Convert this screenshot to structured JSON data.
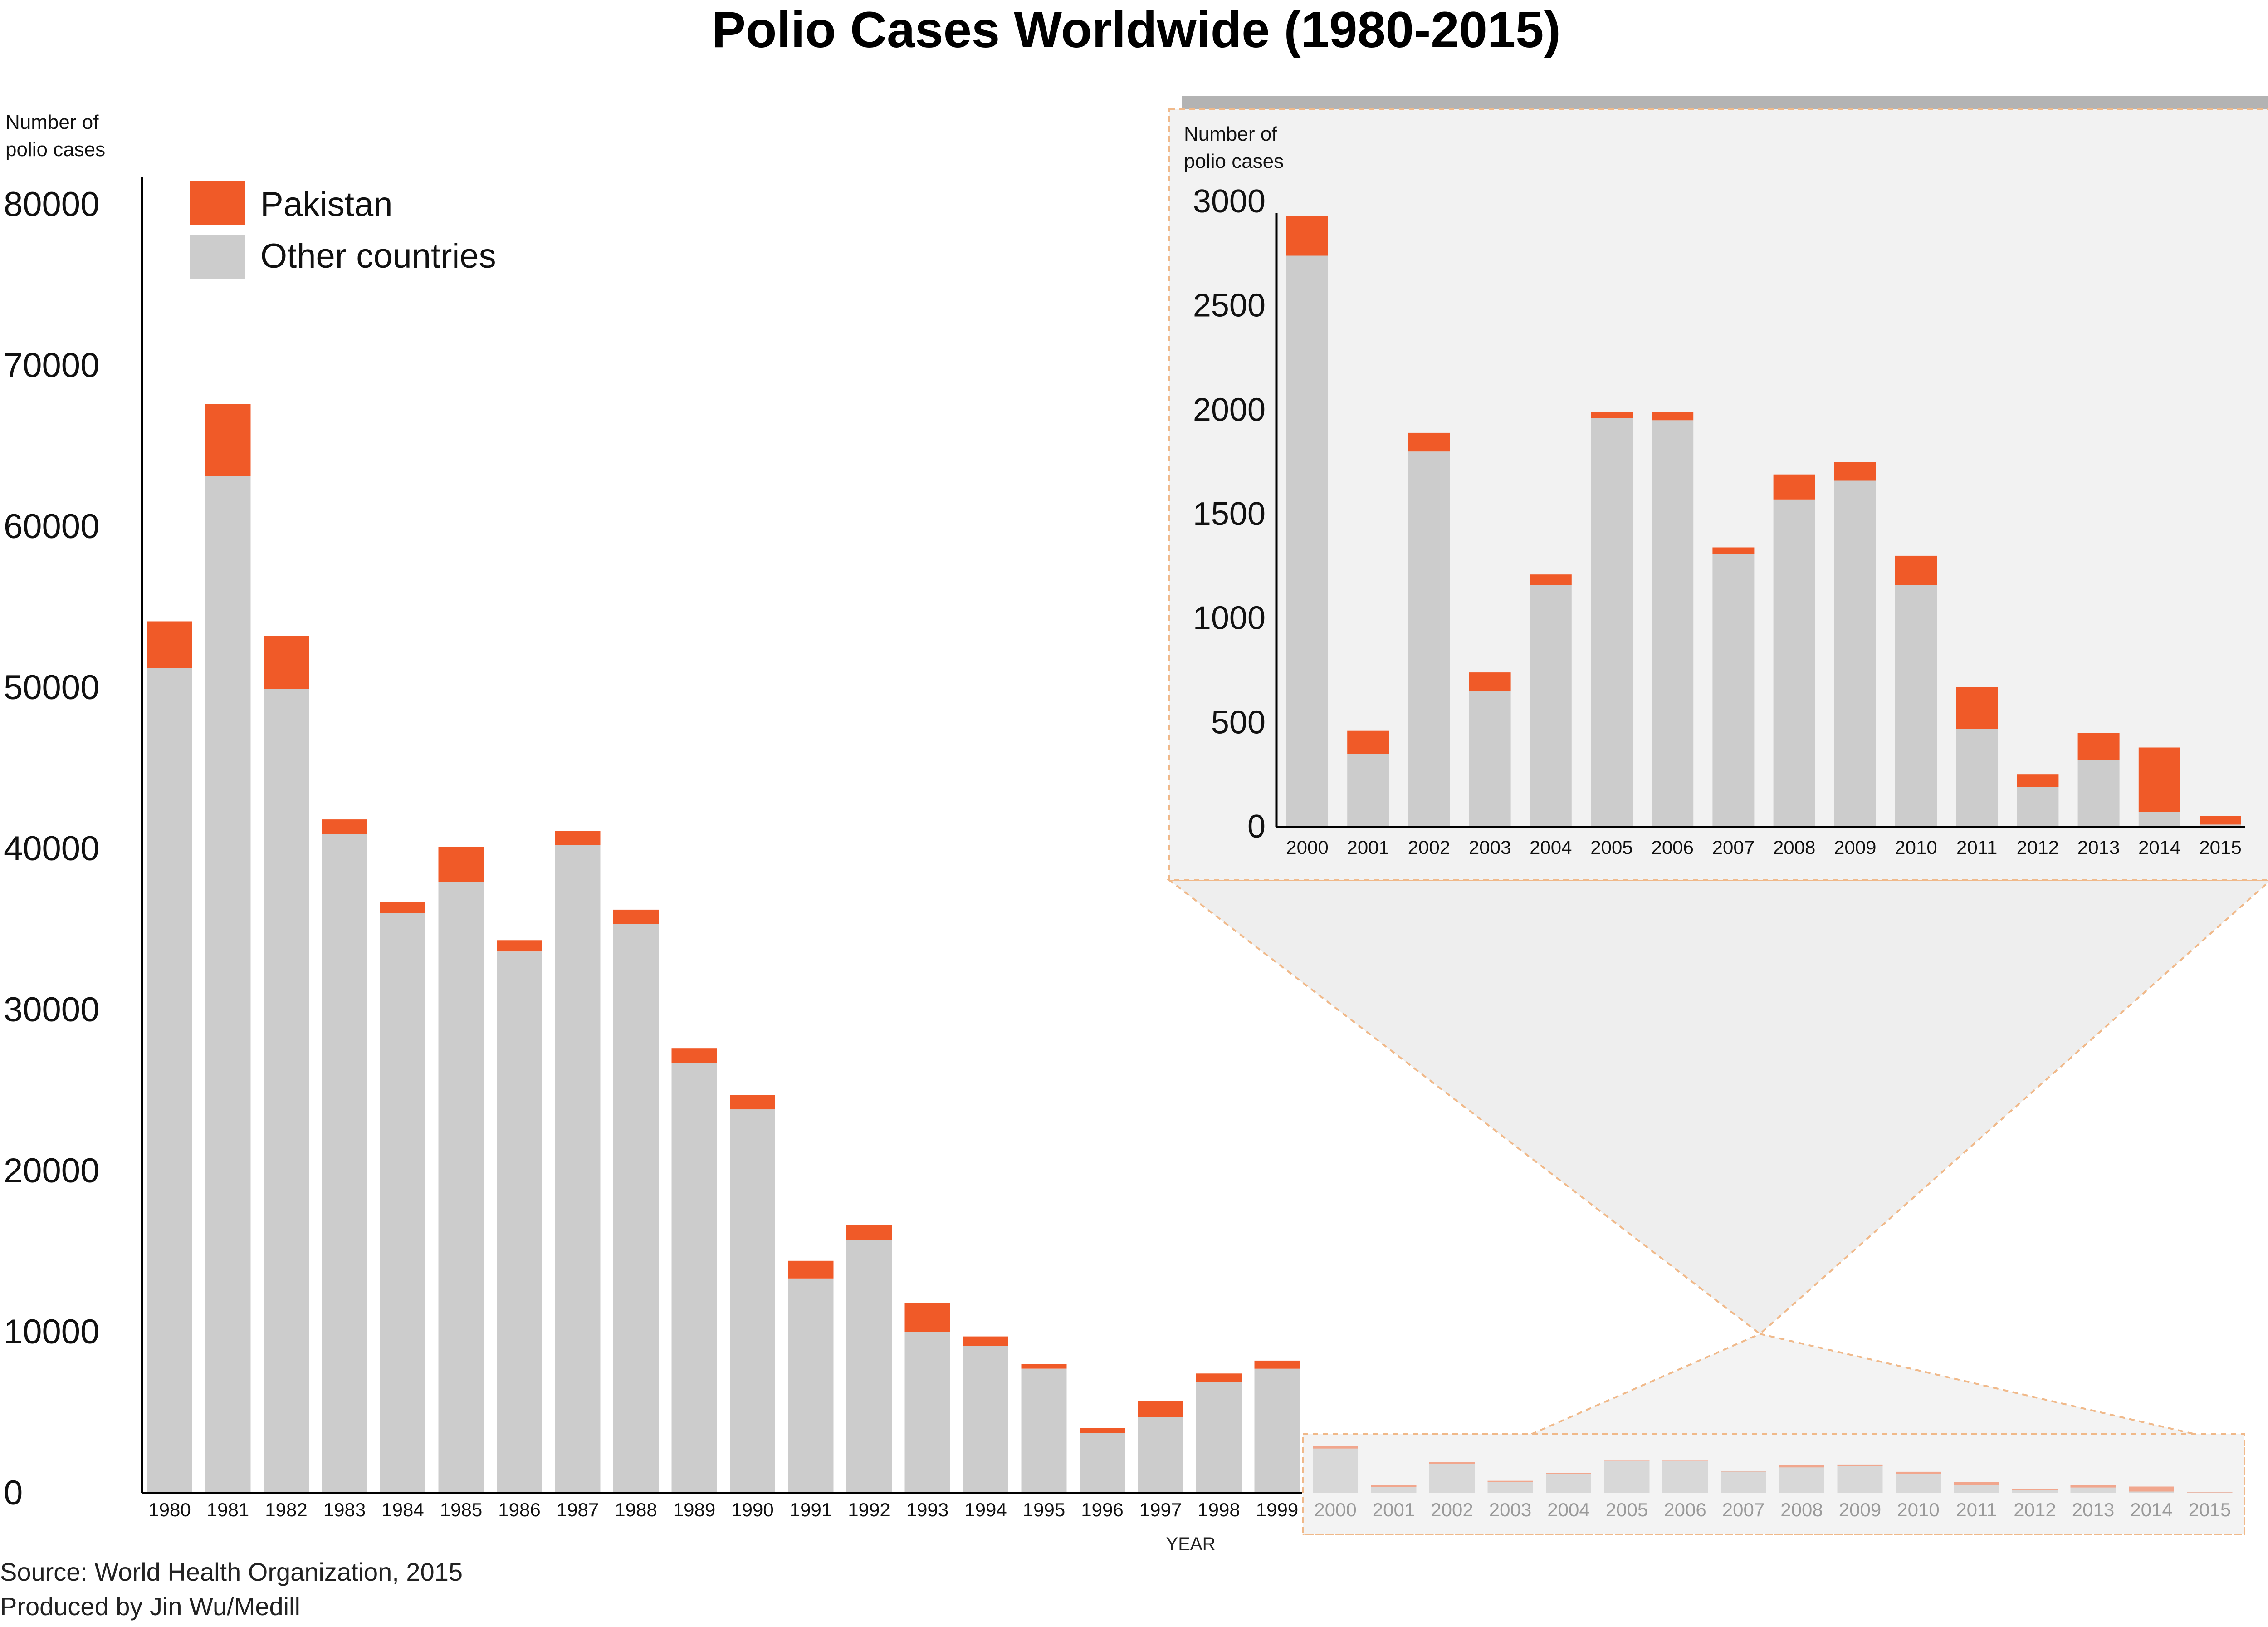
{
  "chart_data": [
    {
      "type": "bar",
      "stacked": true,
      "title": "Polio Cases Worldwide (1980-2015)",
      "ylabel": "Number of polio cases",
      "xlabel": "YEAR",
      "ylim": [
        0,
        80000
      ],
      "yticks": [
        "0",
        "10000",
        "20000",
        "30000",
        "40000",
        "50000",
        "60000",
        "70000",
        "80000"
      ],
      "categories": [
        "1980",
        "1981",
        "1982",
        "1983",
        "1984",
        "1985",
        "1986",
        "1987",
        "1988",
        "1989",
        "1990",
        "1991",
        "1992",
        "1993",
        "1994",
        "1995",
        "1996",
        "1997",
        "1998",
        "1999",
        "2000",
        "2001",
        "2002",
        "2003",
        "2004",
        "2005",
        "2006",
        "2007",
        "2008",
        "2009",
        "2010",
        "2011",
        "2012",
        "2013",
        "2014",
        "2015"
      ],
      "series": [
        {
          "name": "Other countries",
          "color": "#cccccc",
          "values": [
            51200,
            63100,
            49900,
            40900,
            36000,
            37900,
            33600,
            40200,
            35300,
            26700,
            23800,
            13300,
            15700,
            10000,
            9100,
            7700,
            3700,
            4700,
            6900,
            7700,
            2740,
            350,
            1800,
            650,
            1160,
            1960,
            1950,
            1310,
            1570,
            1660,
            1160,
            470,
            190,
            320,
            70,
            10
          ]
        },
        {
          "name": "Pakistan",
          "color": "#f05a28",
          "values": [
            2900,
            4500,
            3300,
            900,
            700,
            2200,
            700,
            900,
            900,
            900,
            900,
            1100,
            900,
            1800,
            600,
            300,
            300,
            1000,
            500,
            500,
            190,
            110,
            90,
            90,
            50,
            30,
            40,
            30,
            120,
            90,
            140,
            200,
            60,
            130,
            310,
            40
          ]
        }
      ],
      "legend": {
        "position": "top-left",
        "items": [
          "Pakistan",
          "Other countries"
        ]
      }
    },
    {
      "type": "bar",
      "stacked": true,
      "role": "inset",
      "ylabel": "Number of polio cases",
      "ylim": [
        0,
        3000
      ],
      "yticks": [
        "0",
        "500",
        "1000",
        "1500",
        "2000",
        "2500",
        "3000"
      ],
      "categories": [
        "2000",
        "2001",
        "2002",
        "2003",
        "2004",
        "2005",
        "2006",
        "2007",
        "2008",
        "2009",
        "2010",
        "2011",
        "2012",
        "2013",
        "2014",
        "2015"
      ],
      "series": [
        {
          "name": "Other countries",
          "color": "#cccccc",
          "values": [
            2740,
            350,
            1800,
            650,
            1160,
            1960,
            1950,
            1310,
            1570,
            1660,
            1160,
            470,
            190,
            320,
            70,
            10
          ]
        },
        {
          "name": "Pakistan",
          "color": "#f05a28",
          "values": [
            190,
            110,
            90,
            90,
            50,
            30,
            40,
            30,
            120,
            90,
            140,
            200,
            60,
            130,
            310,
            40
          ]
        }
      ]
    }
  ],
  "footer": {
    "source": "Source: World Health Organization, 2015",
    "credit": "Produced by Jin Wu/Medill"
  }
}
